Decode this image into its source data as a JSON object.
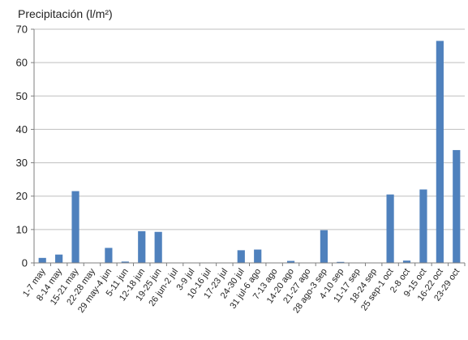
{
  "chart_data": {
    "type": "bar",
    "title": "Precipitación (l/m²)",
    "xlabel": "",
    "ylabel": "",
    "ylim": [
      0,
      70
    ],
    "yticks": [
      0,
      10,
      20,
      30,
      40,
      50,
      60,
      70
    ],
    "grid": true,
    "bar_color": "#4f81bd",
    "categories": [
      "1-7 may",
      "8-14 may",
      "15-21 may",
      "22-28 may",
      "29 may-4 jun",
      "5-11 jun",
      "12-18 jun",
      "19-25 jun",
      "26 jun-2 jul",
      "3-9 jul",
      "10-16 jul",
      "17-23 jul",
      "24-30 jul",
      "31 jul-6 ago",
      "7-13 ago",
      "14-20 ago",
      "21-27 ago",
      "28 ago-3 sep",
      "4-10 sep",
      "11-17 sep",
      "18-24 sep",
      "25 sep-1 oct",
      "2-8 oct",
      "9-15 oct",
      "16-22 oct",
      "23-29 oct"
    ],
    "values": [
      1.5,
      2.5,
      21.5,
      0,
      4.5,
      0.4,
      9.5,
      9.3,
      0,
      0,
      0,
      0,
      3.8,
      4.0,
      0,
      0.6,
      0,
      9.8,
      0.3,
      0,
      0,
      20.5,
      0.7,
      22.0,
      66.5,
      33.8
    ]
  }
}
